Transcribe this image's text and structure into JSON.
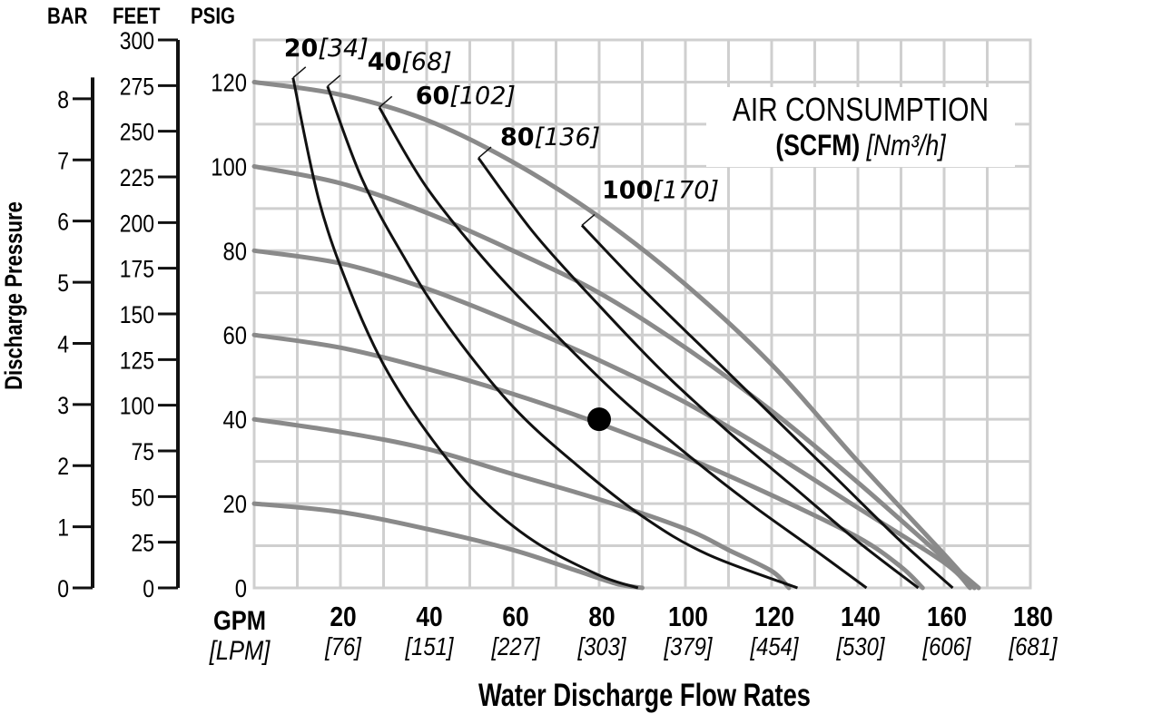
{
  "chart_data": {
    "type": "line",
    "xlabel": "Water Discharge Flow Rates",
    "ylabel": "Discharge Pressure",
    "x_unit_primary": "GPM",
    "x_unit_secondary": "[LPM]",
    "xlim": [
      0,
      180
    ],
    "x_ticks": [
      {
        "value": 20,
        "label": "20",
        "sub": "[76]"
      },
      {
        "value": 40,
        "label": "40",
        "sub": "[151]"
      },
      {
        "value": 60,
        "label": "60",
        "sub": "[227]"
      },
      {
        "value": 80,
        "label": "80",
        "sub": "[303]"
      },
      {
        "value": 100,
        "label": "100",
        "sub": "[379]"
      },
      {
        "value": 120,
        "label": "120",
        "sub": "[454]"
      },
      {
        "value": 140,
        "label": "140",
        "sub": "[530]"
      },
      {
        "value": 160,
        "label": "160",
        "sub": "[606]"
      },
      {
        "value": 180,
        "label": "180",
        "sub": "[681]"
      }
    ],
    "y_axes": [
      {
        "unit": "PSIG",
        "ticks": [
          0,
          20,
          40,
          60,
          80,
          100,
          120
        ]
      },
      {
        "unit": "FEET",
        "ticks": [
          0,
          25,
          50,
          75,
          100,
          125,
          150,
          175,
          200,
          225,
          250,
          275,
          300
        ]
      },
      {
        "unit": "BAR",
        "ticks": [
          0,
          1,
          2,
          3,
          4,
          5,
          6,
          7,
          8
        ]
      }
    ],
    "ylim_psig": [
      0,
      130
    ],
    "grid": true,
    "legend_title": "AIR CONSUMPTION",
    "legend_title_bold": "(SCFM)",
    "legend_title_italic": "[Nm³/h]",
    "legend_placement": "top-right",
    "inlet_pressure_series": [
      {
        "points": [
          [
            0,
            120
          ],
          [
            20,
            117
          ],
          [
            40,
            111
          ],
          [
            60,
            101
          ],
          [
            80,
            88
          ],
          [
            100,
            72
          ],
          [
            120,
            53
          ],
          [
            140,
            30
          ],
          [
            160,
            8
          ],
          [
            167,
            0
          ]
        ]
      },
      {
        "points": [
          [
            0,
            100
          ],
          [
            20,
            96
          ],
          [
            40,
            89
          ],
          [
            60,
            80
          ],
          [
            80,
            70
          ],
          [
            100,
            57
          ],
          [
            120,
            42
          ],
          [
            140,
            25
          ],
          [
            160,
            7
          ],
          [
            168,
            0
          ]
        ]
      },
      {
        "points": [
          [
            0,
            80
          ],
          [
            20,
            77
          ],
          [
            40,
            71
          ],
          [
            60,
            63
          ],
          [
            80,
            54
          ],
          [
            100,
            44
          ],
          [
            120,
            32
          ],
          [
            140,
            19
          ],
          [
            160,
            6
          ],
          [
            166,
            0
          ]
        ]
      },
      {
        "points": [
          [
            0,
            60
          ],
          [
            20,
            57
          ],
          [
            40,
            52
          ],
          [
            60,
            46
          ],
          [
            80,
            39
          ],
          [
            100,
            31
          ],
          [
            120,
            22
          ],
          [
            140,
            12
          ],
          [
            150,
            5
          ],
          [
            155,
            0
          ]
        ]
      },
      {
        "points": [
          [
            0,
            40
          ],
          [
            20,
            37
          ],
          [
            40,
            33
          ],
          [
            60,
            27
          ],
          [
            80,
            21
          ],
          [
            100,
            14
          ],
          [
            110,
            9
          ],
          [
            120,
            4
          ],
          [
            124,
            0
          ]
        ]
      },
      {
        "points": [
          [
            0,
            20
          ],
          [
            20,
            18
          ],
          [
            40,
            14
          ],
          [
            60,
            9
          ],
          [
            75,
            4
          ],
          [
            84,
            1
          ],
          [
            90,
            0
          ]
        ]
      }
    ],
    "air_consumption_series": [
      {
        "label": "20",
        "label_sub": "[34]",
        "points": [
          [
            9,
            121
          ],
          [
            15,
            92
          ],
          [
            22,
            71
          ],
          [
            30,
            53
          ],
          [
            40,
            37
          ],
          [
            52,
            22
          ],
          [
            65,
            11
          ],
          [
            80,
            3
          ],
          [
            89,
            0
          ]
        ]
      },
      {
        "label": "40",
        "label_sub": "[68]",
        "points": [
          [
            17,
            119
          ],
          [
            25,
            97
          ],
          [
            35,
            78
          ],
          [
            45,
            62
          ],
          [
            60,
            43
          ],
          [
            75,
            29
          ],
          [
            90,
            17
          ],
          [
            105,
            8
          ],
          [
            126,
            0
          ]
        ]
      },
      {
        "label": "60",
        "label_sub": "[102]",
        "points": [
          [
            29,
            114
          ],
          [
            40,
            95
          ],
          [
            55,
            76
          ],
          [
            70,
            60
          ],
          [
            85,
            45
          ],
          [
            100,
            32
          ],
          [
            115,
            20
          ],
          [
            130,
            9
          ],
          [
            142,
            0
          ]
        ]
      },
      {
        "label": "80",
        "label_sub": "[136]",
        "points": [
          [
            52,
            102
          ],
          [
            65,
            84
          ],
          [
            80,
            67
          ],
          [
            95,
            51
          ],
          [
            110,
            37
          ],
          [
            125,
            24
          ],
          [
            140,
            11
          ],
          [
            154,
            0
          ]
        ]
      },
      {
        "label": "100",
        "label_sub": "[170]",
        "points": [
          [
            76,
            86
          ],
          [
            90,
            71
          ],
          [
            105,
            56
          ],
          [
            120,
            41
          ],
          [
            135,
            26
          ],
          [
            150,
            11
          ],
          [
            162,
            0
          ]
        ]
      }
    ],
    "operating_point": {
      "x": 80,
      "y": 40
    }
  }
}
